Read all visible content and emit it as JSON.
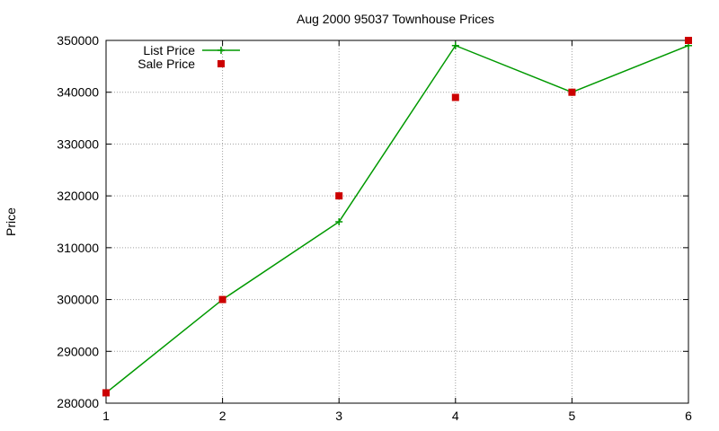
{
  "chart_data": {
    "type": "line",
    "title": "Aug 2000 95037 Townhouse Prices",
    "xlabel": "",
    "ylabel": "Price",
    "x": [
      1,
      2,
      3,
      4,
      5,
      6
    ],
    "xlim": [
      1,
      6
    ],
    "ylim": [
      280000,
      350000
    ],
    "x_ticks": [
      "1",
      "2",
      "3",
      "4",
      "5",
      "6"
    ],
    "y_ticks": [
      "280000",
      "290000",
      "300000",
      "310000",
      "320000",
      "330000",
      "340000",
      "350000"
    ],
    "grid": true,
    "legend_position": "top-left",
    "series": [
      {
        "name": "List Price",
        "style": "lines+points",
        "marker": "plus",
        "color": "#009900",
        "values": [
          282000,
          300000,
          315000,
          349000,
          340000,
          349000
        ]
      },
      {
        "name": "Sale Price",
        "style": "points",
        "marker": "square",
        "color": "#cc0000",
        "values": [
          282000,
          300000,
          320000,
          339000,
          340000,
          350000
        ]
      }
    ]
  }
}
